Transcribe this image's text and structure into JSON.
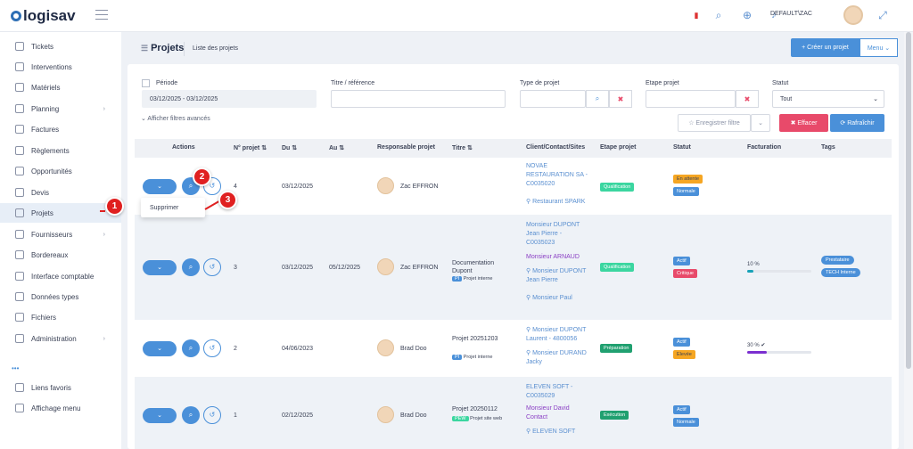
{
  "app": {
    "name": "logisav",
    "user": "DEFAULT\\ZAC"
  },
  "sidebar": {
    "items": [
      {
        "label": "Tickets"
      },
      {
        "label": "Interventions"
      },
      {
        "label": "Matériels"
      },
      {
        "label": "Planning",
        "chev": "›"
      },
      {
        "label": "Factures"
      },
      {
        "label": "Règlements"
      },
      {
        "label": "Opportunités"
      },
      {
        "label": "Devis"
      },
      {
        "label": "Projets"
      },
      {
        "label": "Fournisseurs",
        "chev": "›"
      },
      {
        "label": "Bordereaux"
      },
      {
        "label": "Interface comptable"
      },
      {
        "label": "Données types"
      },
      {
        "label": "Fichiers"
      },
      {
        "label": "Administration",
        "chev": "›"
      },
      {
        "label": "Liens favoris"
      },
      {
        "label": "Affichage menu"
      }
    ],
    "more": "•••"
  },
  "header": {
    "title": "Projets",
    "subtitle": "Liste des projets",
    "create_label": "+ Créer un projet",
    "menu_label": "Menu ⌄"
  },
  "filters": {
    "periode_label": "Période",
    "periode_value": "03/12/2025 - 03/12/2025",
    "titre_label": "Titre / référence",
    "type_label": "Type de projet",
    "etape_label": "Etape projet",
    "statut_label": "Statut",
    "statut_value": "Tout",
    "advanced": "⌄ Afficher filtres avancés",
    "save_label": "☆ Enregistrer filtre",
    "clear_label": "✖ Effacer",
    "refresh_label": "⟳ Rafraîchir"
  },
  "table": {
    "headers": [
      "Actions",
      "N° projet ⇅",
      "Du ⇅",
      "Au ⇅",
      "Responsable projet",
      "Titre ⇅",
      "Client/Contact/Sites",
      "Etape projet",
      "Statut",
      "Facturation",
      "Tags"
    ],
    "rows": [
      {
        "num": "4",
        "du": "03/12/2025",
        "au": "",
        "resp": "Zac EFFRON",
        "titre": "",
        "titre2": "",
        "type": "",
        "client": [
          "NOVAE",
          "RESTAURATION SA -",
          "C0035020",
          "",
          "⚲ Restaurant SPARK"
        ],
        "etape": "Qualification",
        "statut": [
          "En attente",
          "Normale"
        ],
        "fact": "",
        "tags": []
      },
      {
        "num": "3",
        "du": "03/12/2025",
        "au": "05/12/2025",
        "resp": "Zac EFFRON",
        "titre": "Documentation",
        "titre2": "Dupont",
        "type": "PI",
        "type_label": "Projet interne",
        "client": [
          "Monsieur DUPONT",
          "Jean Pierre -",
          "C0035023",
          "Monsieur ARNAUD",
          "⚲ Monsieur DUPONT",
          "Jean Pierre",
          "⚲ Monsieur Paul"
        ],
        "etape": "Qualification",
        "statut": [
          "Actif",
          "Critique"
        ],
        "fact": "10 %",
        "tags": [
          "Prestataire",
          "TECH Interne"
        ]
      },
      {
        "num": "2",
        "du": "04/06/2023",
        "au": "",
        "resp": "Brad Doo",
        "titre": "Projet 20251203",
        "titre2": "",
        "type": "PI",
        "type_label": "Projet interne",
        "client": [
          "⚲ Monsieur DUPONT",
          "Laurent - 4800056",
          "⚲ Monsieur DURAND",
          "Jacky"
        ],
        "etape": "Préparation",
        "statut": [
          "Actif",
          "Elevée"
        ],
        "fact": "30 % ✔",
        "tags": []
      },
      {
        "num": "1",
        "du": "02/12/2025",
        "au": "",
        "resp": "Brad Doo",
        "titre": "Projet 20250112",
        "titre2": "",
        "type": "PEW",
        "type_label": "Projet site web",
        "client": [
          "ELEVEN SOFT -",
          "C0035029",
          "Monsieur David",
          "Contact",
          "⚲ ELEVEN SOFT"
        ],
        "etape": "Exécution",
        "statut": [
          "Actif",
          "Normale"
        ],
        "fact": "",
        "tags": []
      }
    ]
  },
  "dropdown": {
    "delete_label": "Supprimer"
  },
  "markers": [
    "1",
    "2",
    "3"
  ],
  "progress": [
    0.1,
    0.3
  ],
  "colors": {
    "accent": "#4a90d9",
    "danger": "#e84a6a",
    "marker": "#e02020"
  }
}
